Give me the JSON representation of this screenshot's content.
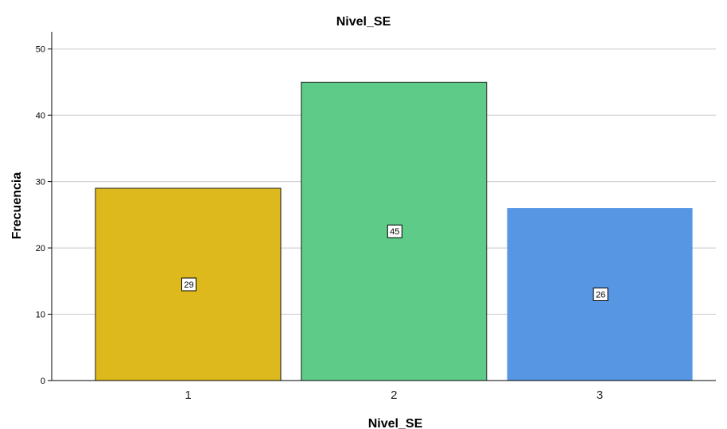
{
  "chart_data": {
    "type": "bar",
    "title": "Nivel_SE",
    "xlabel": "Nivel_SE",
    "ylabel": "Frecuencia",
    "categories": [
      "1",
      "2",
      "3"
    ],
    "values": [
      29,
      45,
      26
    ],
    "data_labels": [
      "29",
      "45",
      "26"
    ],
    "bar_colors": [
      "#DDB91E",
      "#5ECB89",
      "#5796E3"
    ],
    "bar_outlines": [
      true,
      true,
      false
    ],
    "ylim": [
      0,
      52.6
    ],
    "yticks": [
      0,
      10,
      20,
      30,
      40,
      50
    ],
    "grid": true
  }
}
